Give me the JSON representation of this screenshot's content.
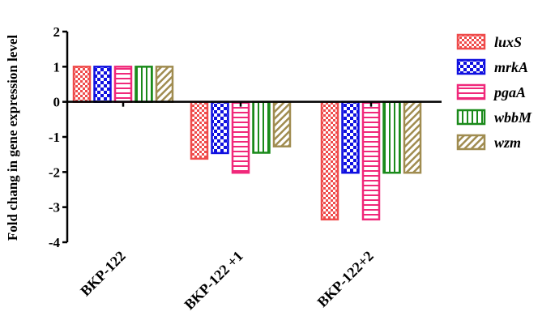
{
  "chart_data": {
    "type": "bar",
    "title": "",
    "xlabel": "",
    "ylabel": "Fold chang in gene expression level",
    "ylim": [
      -4,
      2
    ],
    "yticks": [
      2,
      1,
      0,
      -1,
      -2,
      -3,
      -4
    ],
    "grid": false,
    "legend_position": "right",
    "categories": [
      "BKP-122",
      "BKP-122 +1",
      "BKP-122+2"
    ],
    "series": [
      {
        "name": "luxS",
        "values": [
          1.0,
          -1.62,
          -3.35
        ],
        "color": "#ef4b4b",
        "pattern": "checker-fine"
      },
      {
        "name": "mrkA",
        "values": [
          1.0,
          -1.46,
          -2.02
        ],
        "color": "#1010e0",
        "pattern": "checker-bold"
      },
      {
        "name": "pgaA",
        "values": [
          1.0,
          -2.02,
          -3.35
        ],
        "color": "#f0287a",
        "pattern": "horizontal-lines"
      },
      {
        "name": "wbbM",
        "values": [
          1.0,
          -1.45,
          -2.02
        ],
        "color": "#1a8a1a",
        "pattern": "vertical-lines"
      },
      {
        "name": "wzm",
        "values": [
          1.0,
          -1.27,
          -2.02
        ],
        "color": "#a08c50",
        "pattern": "diagonal-lines"
      }
    ]
  }
}
